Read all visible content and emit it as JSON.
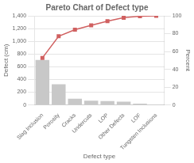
{
  "chart_data": {
    "type": "bar",
    "title": "Pareto Chart of Defect type",
    "categories": [
      "Slag Inclusion",
      "Porosity",
      "Cracks",
      "Undercuts",
      "LOP",
      "Other Defects",
      "LOF",
      "Tungsten Inclusions"
    ],
    "xlabel": "Defect type",
    "ylabel": "Defect (cm)",
    "y2label": "Percent",
    "series": [
      {
        "type": "bar",
        "color": "#c8c8c8",
        "values": [
          706,
          325,
          98,
          67,
          62,
          52,
          21,
          7
        ]
      },
      {
        "type": "line",
        "axis": "y2",
        "color": "#d06060",
        "marker": "square",
        "values": [
          52.8,
          77.1,
          84.4,
          89.4,
          94.0,
          97.9,
          99.5,
          100.0
        ]
      }
    ],
    "ylim": [
      0,
      1400
    ],
    "yticks": [
      0,
      200,
      400,
      600,
      800,
      1000,
      1200,
      1400
    ],
    "y2lim": [
      0,
      100
    ],
    "y2ticks": [
      0,
      20,
      40,
      60,
      80,
      100
    ],
    "grid": true
  }
}
